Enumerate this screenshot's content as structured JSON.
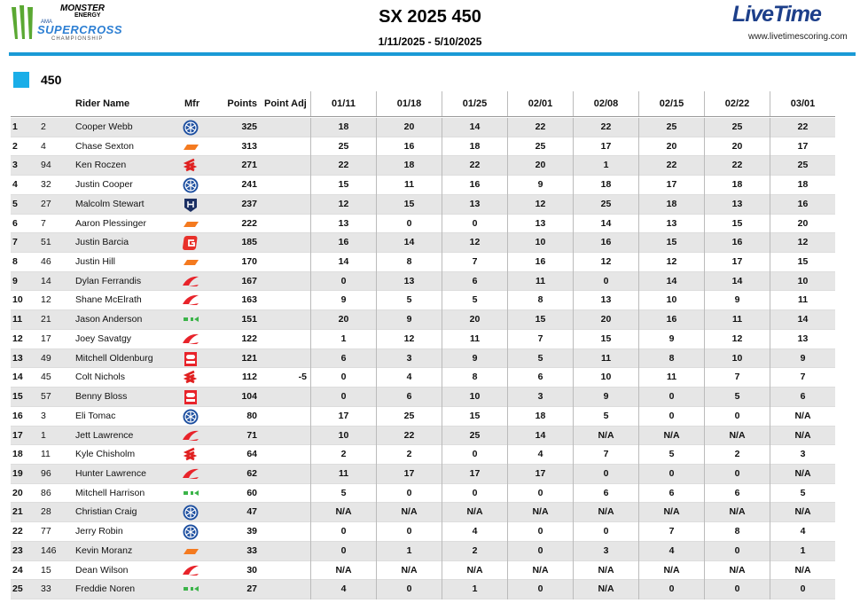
{
  "header": {
    "brand": "MONSTER",
    "brand_sub": "ENERGY",
    "sanction": "AMA",
    "series": "SUPERCROSS",
    "series_sub": "CHAMPIONSHIP",
    "title": "SX 2025 450",
    "dates": "1/11/2025 - 5/10/2025",
    "timing": "LiveTime",
    "url": "www.livetimescoring.com"
  },
  "section": "450",
  "table": {
    "columns": [
      "Rider Name",
      "Mfr",
      "Points",
      "Point Adj"
    ],
    "rounds": [
      "01/11",
      "01/18",
      "01/25",
      "02/01",
      "02/08",
      "02/15",
      "02/22",
      "03/01"
    ],
    "rows": [
      {
        "pos": 1,
        "num": 2,
        "name": "Cooper Webb",
        "mfr": "yamaha",
        "points": 325,
        "results": [
          18,
          20,
          14,
          22,
          22,
          25,
          25,
          22
        ]
      },
      {
        "pos": 2,
        "num": 4,
        "name": "Chase Sexton",
        "mfr": "ktm",
        "points": 313,
        "results": [
          25,
          16,
          18,
          25,
          17,
          20,
          20,
          17
        ]
      },
      {
        "pos": 3,
        "num": 94,
        "name": "Ken Roczen",
        "mfr": "suzuki",
        "points": 271,
        "results": [
          22,
          18,
          22,
          20,
          1,
          22,
          22,
          25
        ]
      },
      {
        "pos": 4,
        "num": 32,
        "name": "Justin Cooper",
        "mfr": "yamaha",
        "points": 241,
        "results": [
          15,
          11,
          16,
          9,
          18,
          17,
          18,
          18
        ]
      },
      {
        "pos": 5,
        "num": 27,
        "name": "Malcolm Stewart",
        "mfr": "husqvarna",
        "points": 237,
        "results": [
          12,
          15,
          13,
          12,
          25,
          18,
          13,
          16
        ]
      },
      {
        "pos": 6,
        "num": 7,
        "name": "Aaron Plessinger",
        "mfr": "ktm",
        "points": 222,
        "results": [
          13,
          0,
          0,
          13,
          14,
          13,
          15,
          20
        ]
      },
      {
        "pos": 7,
        "num": 51,
        "name": "Justin Barcia",
        "mfr": "gasgas",
        "points": 185,
        "results": [
          16,
          14,
          12,
          10,
          16,
          15,
          16,
          12
        ]
      },
      {
        "pos": 8,
        "num": 46,
        "name": "Justin Hill",
        "mfr": "ktm",
        "points": 170,
        "results": [
          14,
          8,
          7,
          16,
          12,
          12,
          17,
          15
        ]
      },
      {
        "pos": 9,
        "num": 14,
        "name": "Dylan Ferrandis",
        "mfr": "honda",
        "points": 167,
        "results": [
          0,
          13,
          6,
          11,
          0,
          14,
          14,
          10
        ]
      },
      {
        "pos": 10,
        "num": 12,
        "name": "Shane McElrath",
        "mfr": "honda",
        "points": 163,
        "results": [
          9,
          5,
          5,
          8,
          13,
          10,
          9,
          11
        ]
      },
      {
        "pos": 11,
        "num": 21,
        "name": "Jason Anderson",
        "mfr": "kawasaki",
        "points": 151,
        "results": [
          20,
          9,
          20,
          15,
          20,
          16,
          11,
          14
        ]
      },
      {
        "pos": 12,
        "num": 17,
        "name": "Joey Savatgy",
        "mfr": "honda",
        "points": 122,
        "results": [
          1,
          12,
          11,
          7,
          15,
          9,
          12,
          13
        ]
      },
      {
        "pos": 13,
        "num": 49,
        "name": "Mitchell Oldenburg",
        "mfr": "beta",
        "points": 121,
        "results": [
          6,
          3,
          9,
          5,
          11,
          8,
          10,
          9
        ]
      },
      {
        "pos": 14,
        "num": 45,
        "name": "Colt Nichols",
        "mfr": "suzuki",
        "points": 112,
        "adj": -5,
        "results": [
          0,
          4,
          8,
          6,
          10,
          11,
          7,
          7
        ]
      },
      {
        "pos": 15,
        "num": 57,
        "name": "Benny Bloss",
        "mfr": "beta",
        "points": 104,
        "results": [
          0,
          6,
          10,
          3,
          9,
          0,
          5,
          6
        ]
      },
      {
        "pos": 16,
        "num": 3,
        "name": "Eli Tomac",
        "mfr": "yamaha",
        "points": 80,
        "results": [
          17,
          25,
          15,
          18,
          5,
          0,
          0,
          "N/A"
        ]
      },
      {
        "pos": 17,
        "num": 1,
        "name": "Jett Lawrence",
        "mfr": "honda",
        "points": 71,
        "results": [
          10,
          22,
          25,
          14,
          "N/A",
          "N/A",
          "N/A",
          "N/A"
        ]
      },
      {
        "pos": 18,
        "num": 11,
        "name": "Kyle Chisholm",
        "mfr": "suzuki",
        "points": 64,
        "results": [
          2,
          2,
          0,
          4,
          7,
          5,
          2,
          3
        ]
      },
      {
        "pos": 19,
        "num": 96,
        "name": "Hunter Lawrence",
        "mfr": "honda",
        "points": 62,
        "results": [
          11,
          17,
          17,
          17,
          0,
          0,
          0,
          "N/A"
        ]
      },
      {
        "pos": 20,
        "num": 86,
        "name": "Mitchell Harrison",
        "mfr": "kawasaki",
        "points": 60,
        "results": [
          5,
          0,
          0,
          0,
          6,
          6,
          6,
          5
        ]
      },
      {
        "pos": 21,
        "num": 28,
        "name": "Christian Craig",
        "mfr": "yamaha",
        "points": 47,
        "results": [
          "N/A",
          "N/A",
          "N/A",
          "N/A",
          "N/A",
          "N/A",
          "N/A",
          "N/A"
        ]
      },
      {
        "pos": 22,
        "num": 77,
        "name": "Jerry Robin",
        "mfr": "yamaha",
        "points": 39,
        "results": [
          0,
          0,
          4,
          0,
          0,
          7,
          8,
          4
        ]
      },
      {
        "pos": 23,
        "num": 146,
        "name": "Kevin Moranz",
        "mfr": "ktm",
        "points": 33,
        "results": [
          0,
          1,
          2,
          0,
          3,
          4,
          0,
          1
        ]
      },
      {
        "pos": 24,
        "num": 15,
        "name": "Dean Wilson",
        "mfr": "honda",
        "points": 30,
        "results": [
          "N/A",
          "N/A",
          "N/A",
          "N/A",
          "N/A",
          "N/A",
          "N/A",
          "N/A"
        ]
      },
      {
        "pos": 25,
        "num": 33,
        "name": "Freddie Noren",
        "mfr": "kawasaki",
        "points": 27,
        "results": [
          4,
          0,
          1,
          0,
          "N/A",
          0,
          0,
          0
        ]
      }
    ]
  }
}
